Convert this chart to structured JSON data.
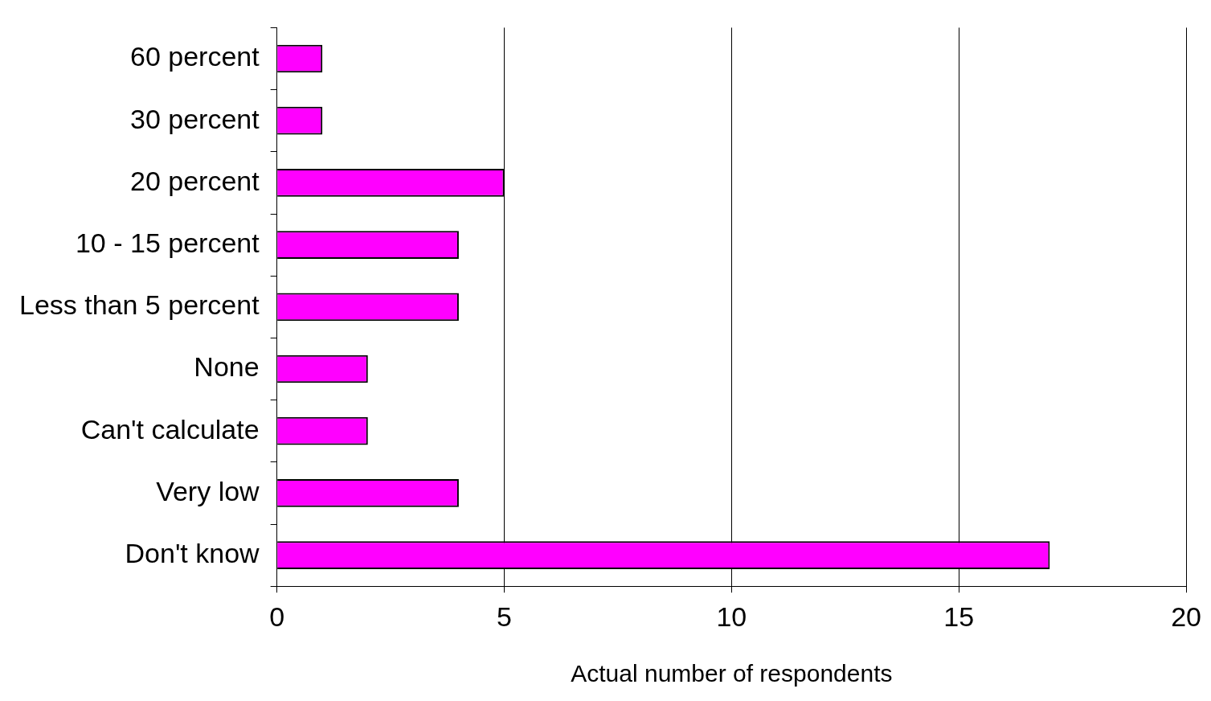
{
  "chart_data": {
    "type": "bar",
    "orientation": "horizontal",
    "categories": [
      "60 percent",
      "30 percent",
      "20 percent",
      "10 - 15 percent",
      "Less than 5 percent",
      "None",
      "Can't calculate",
      "Very low",
      "Don't know"
    ],
    "values": [
      1,
      1,
      5,
      4,
      4,
      2,
      2,
      4,
      17
    ],
    "color": "#ff00ff",
    "xlabel": "Actual number of respondents",
    "xlim": [
      0,
      20
    ],
    "xticks": [
      0,
      5,
      10,
      15,
      20
    ],
    "grid": "x",
    "legend": false
  }
}
